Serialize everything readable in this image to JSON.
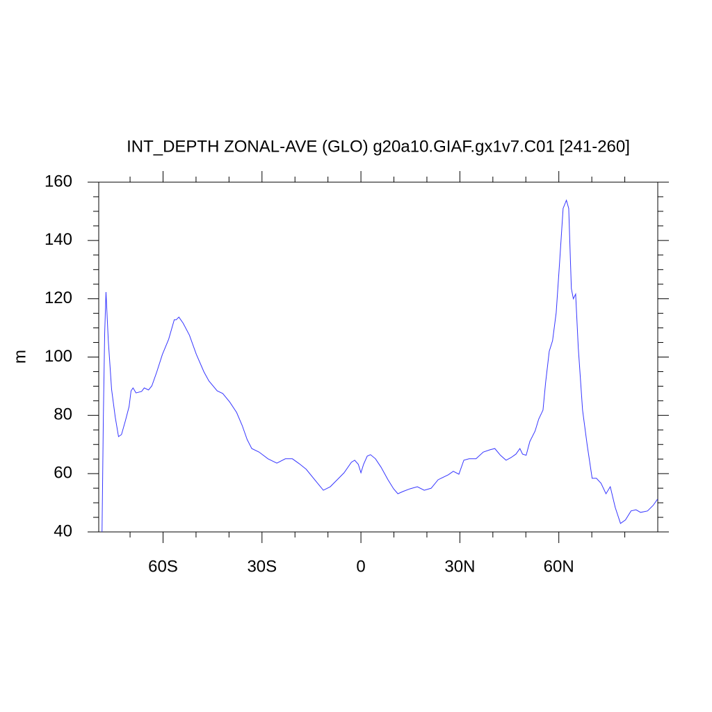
{
  "chart_data": {
    "type": "line",
    "title": "INT_DEPTH ZONAL-AVE (GLO) g20a10.GIAF.gx1v7.C01 [241-260]",
    "ylabel": "m",
    "xlim": [
      -79.5,
      90
    ],
    "xticks": [
      {
        "value": -60,
        "label": "60S"
      },
      {
        "value": -30,
        "label": "30S"
      },
      0,
      {
        "value": 30,
        "label": "30N"
      },
      {
        "value": 60,
        "label": "60N"
      }
    ],
    "xminorticks": [
      -70,
      -50,
      -40,
      -20,
      -10,
      10,
      20,
      40,
      50,
      70,
      80
    ],
    "ylim": [
      40,
      160
    ],
    "yticks": [
      40,
      60,
      80,
      100,
      120,
      140,
      160
    ],
    "yminorticks": [
      45,
      50,
      55,
      65,
      70,
      75,
      85,
      90,
      95,
      105,
      110,
      115,
      125,
      130,
      135,
      145,
      150,
      155
    ],
    "grid": false,
    "series": [
      {
        "color": "#3535ff",
        "x": [
          -78.5,
          -78.1,
          -77.7,
          -77.3,
          -76.6,
          -75.6,
          -74.5,
          -73.5,
          -72.6,
          -71.4,
          -70.3,
          -69.7,
          -69.1,
          -68.2,
          -66.5,
          -65.7,
          -64.4,
          -63.4,
          -61.9,
          -60.2,
          -58.3,
          -56.6,
          -56,
          -55.2,
          -53.9,
          -52,
          -49.9,
          -47.6,
          -46.1,
          -43.6,
          -41.9,
          -39.8,
          -37.7,
          -36,
          -34.5,
          -33.1,
          -30.9,
          -28.2,
          -25.5,
          -22.9,
          -20.8,
          -18.7,
          -16.6,
          -13.5,
          -11.4,
          -9.3,
          -7.2,
          -5.1,
          -2.9,
          -1.9,
          -0.8,
          0,
          0.8,
          1.9,
          2.9,
          4.4,
          6.1,
          8.2,
          9.9,
          11.2,
          12.8,
          14.9,
          17.1,
          19.2,
          21.3,
          23.4,
          26.5,
          28,
          29.7,
          31.2,
          32.8,
          34.9,
          37.1,
          39.2,
          40.6,
          42.3,
          44,
          45.5,
          47,
          48.2,
          49,
          50.1,
          51.2,
          52.8,
          53.9,
          55.2,
          56,
          57.1,
          58.1,
          59.2,
          60.2,
          61.3,
          62.3,
          63,
          63.8,
          64.4,
          65.1,
          65.9,
          67.2,
          68.6,
          70.1,
          71.4,
          72.8,
          74.3,
          75.6,
          77.1,
          78.7,
          80.2,
          81.9,
          83.4,
          84.8,
          86.9,
          88.6,
          89.9
        ],
        "values": [
          40,
          79.4,
          108,
          122.3,
          105.6,
          88.9,
          79.4,
          72.7,
          73.4,
          78.2,
          83,
          88.4,
          89.4,
          87.7,
          88.2,
          89.4,
          88.7,
          90.1,
          94.9,
          100.9,
          106.1,
          112.8,
          112.8,
          113.7,
          111.6,
          107.5,
          100.9,
          94.9,
          91.8,
          88.4,
          87.5,
          84.6,
          81,
          76.5,
          71.7,
          68.6,
          67.4,
          65.1,
          63.6,
          65.1,
          65.1,
          63.4,
          61.5,
          57.2,
          54.3,
          55.5,
          57.9,
          60.3,
          63.9,
          64.6,
          63.2,
          60.3,
          63.2,
          66,
          66.5,
          65.1,
          62.2,
          57.9,
          54.8,
          53.1,
          53.9,
          54.8,
          55.5,
          54.3,
          55,
          57.9,
          59.6,
          60.8,
          59.8,
          64.6,
          65.1,
          65.1,
          67.4,
          68.2,
          68.6,
          66.3,
          64.6,
          65.5,
          66.7,
          68.6,
          66.7,
          66.3,
          71,
          74.6,
          78.7,
          81.8,
          91.3,
          102,
          105.6,
          115.2,
          131.9,
          151,
          153.8,
          151,
          123.5,
          120,
          121.6,
          103.2,
          81.8,
          69.8,
          58.4,
          58.4,
          56.7,
          53.1,
          55.5,
          48.4,
          42.9,
          44.1,
          47.2,
          47.6,
          46.7,
          47.2,
          49.1,
          51.2
        ]
      }
    ]
  }
}
